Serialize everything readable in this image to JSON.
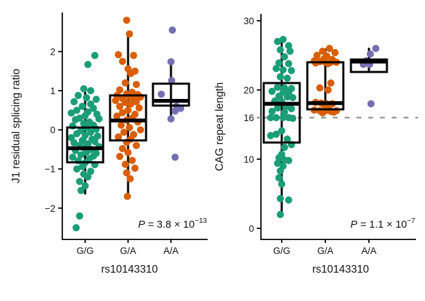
{
  "figure": {
    "background": "#ffffff",
    "stroke_color": "#000000"
  },
  "chart_data": [
    {
      "type": "boxplot-scatter",
      "title": "",
      "ylabel": "J1 residual splicing ratio",
      "xlabel": "rs10143310",
      "categories": [
        "G/G",
        "G/A",
        "A/A"
      ],
      "colors": [
        "#1b9e77",
        "#d95f02",
        "#7570b3"
      ],
      "ylim": [
        -2.8,
        3.0
      ],
      "grid": false,
      "legend": "none",
      "yticks": [
        {
          "v": -2,
          "label": "−2"
        },
        {
          "v": -1,
          "label": "−1"
        },
        {
          "v": 0,
          "label": "0"
        },
        {
          "v": 1,
          "label": "1"
        },
        {
          "v": 2,
          "label": "2"
        }
      ],
      "annotation": {
        "italic": "P",
        "rest": " = 3.8 × 10",
        "exp": "−13"
      },
      "groups": [
        {
          "category": "G/G",
          "box": {
            "lo": -1.65,
            "q1": -0.83,
            "median": -0.47,
            "q3": 0.06,
            "hi": 1.03
          },
          "points": [
            [
              14,
              1.9
            ],
            [
              4,
              1.67
            ],
            [
              -2,
              1.05
            ],
            [
              8,
              1.0
            ],
            [
              -10,
              0.88
            ],
            [
              2,
              0.82
            ],
            [
              16,
              0.78
            ],
            [
              -16,
              0.72
            ],
            [
              8,
              0.66
            ],
            [
              -4,
              0.6
            ],
            [
              12,
              0.55
            ],
            [
              -12,
              0.5
            ],
            [
              4,
              0.46
            ],
            [
              -20,
              0.43
            ],
            [
              17,
              0.4
            ],
            [
              0,
              0.36
            ],
            [
              -8,
              0.3
            ],
            [
              20,
              0.28
            ],
            [
              -14,
              0.26
            ],
            [
              6,
              0.2
            ],
            [
              -2,
              0.16
            ],
            [
              12,
              0.12
            ],
            [
              -18,
              0.1
            ],
            [
              2,
              0.06
            ],
            [
              16,
              0.02
            ],
            [
              -6,
              -0.02
            ],
            [
              8,
              -0.06
            ],
            [
              -12,
              -0.1
            ],
            [
              0,
              -0.14
            ],
            [
              18,
              -0.16
            ],
            [
              -20,
              -0.2
            ],
            [
              10,
              -0.24
            ],
            [
              -4,
              -0.27
            ],
            [
              14,
              -0.3
            ],
            [
              -16,
              -0.33
            ],
            [
              4,
              -0.36
            ],
            [
              -8,
              -0.4
            ],
            [
              20,
              -0.43
            ],
            [
              -2,
              -0.46
            ],
            [
              8,
              -0.5
            ],
            [
              -14,
              -0.53
            ],
            [
              2,
              -0.57
            ],
            [
              16,
              -0.6
            ],
            [
              -6,
              -0.64
            ],
            [
              12,
              -0.67
            ],
            [
              -18,
              -0.7
            ],
            [
              6,
              -0.74
            ],
            [
              -10,
              -0.79
            ],
            [
              0,
              -0.84
            ],
            [
              14,
              -0.89
            ],
            [
              -4,
              -0.94
            ],
            [
              -12,
              -1.0
            ],
            [
              8,
              -1.06
            ],
            [
              -2,
              -1.13
            ],
            [
              4,
              -1.2
            ],
            [
              -8,
              -1.32
            ],
            [
              0,
              -1.43
            ],
            [
              -6,
              -1.55
            ],
            [
              -8,
              -2.2
            ],
            [
              -13,
              -2.5
            ]
          ]
        },
        {
          "category": "G/A",
          "box": {
            "lo": -1.68,
            "q1": -0.27,
            "median": 0.24,
            "q3": 0.88,
            "hi": 2.42
          },
          "points": [
            [
              -2,
              2.8
            ],
            [
              2,
              2.45
            ],
            [
              -14,
              1.92
            ],
            [
              8,
              1.9
            ],
            [
              -8,
              1.75
            ],
            [
              0,
              1.56
            ],
            [
              10,
              1.5
            ],
            [
              4,
              1.44
            ],
            [
              -4,
              1.2
            ],
            [
              12,
              1.16
            ],
            [
              -12,
              1.02
            ],
            [
              6,
              0.96
            ],
            [
              -2,
              0.92
            ],
            [
              14,
              0.9
            ],
            [
              -16,
              0.88
            ],
            [
              2,
              0.85
            ],
            [
              18,
              0.84
            ],
            [
              -8,
              0.8
            ],
            [
              8,
              0.78
            ],
            [
              -18,
              0.75
            ],
            [
              12,
              0.72
            ],
            [
              -4,
              0.7
            ],
            [
              4,
              0.66
            ],
            [
              -12,
              0.6
            ],
            [
              16,
              0.56
            ],
            [
              0,
              0.5
            ],
            [
              -8,
              0.44
            ],
            [
              10,
              0.4
            ],
            [
              -16,
              0.35
            ],
            [
              6,
              0.3
            ],
            [
              -2,
              0.25
            ],
            [
              14,
              0.2
            ],
            [
              -10,
              0.12
            ],
            [
              2,
              0.06
            ],
            [
              18,
              0.0
            ],
            [
              -6,
              -0.06
            ],
            [
              8,
              -0.12
            ],
            [
              -14,
              -0.18
            ],
            [
              4,
              -0.24
            ],
            [
              -2,
              -0.32
            ],
            [
              12,
              -0.4
            ],
            [
              -8,
              -0.48
            ],
            [
              0,
              -0.58
            ],
            [
              -12,
              -0.68
            ],
            [
              6,
              -0.78
            ],
            [
              -4,
              -0.88
            ],
            [
              10,
              -0.98
            ],
            [
              -2,
              -1.1
            ],
            [
              3,
              -1.25
            ],
            [
              -1,
              -1.7
            ]
          ]
        },
        {
          "category": "A/A",
          "box": {
            "lo": 0.29,
            "q1": 0.62,
            "median": 0.74,
            "q3": 1.18,
            "hi": 1.78
          },
          "points": [
            [
              2,
              2.55
            ],
            [
              0,
              1.74
            ],
            [
              1,
              1.26
            ],
            [
              -14,
              0.91
            ],
            [
              8,
              0.6
            ],
            [
              14,
              0.55
            ],
            [
              6,
              0.48
            ],
            [
              0,
              0.28
            ],
            [
              6,
              -0.7
            ]
          ]
        }
      ]
    },
    {
      "type": "boxplot-scatter",
      "title": "",
      "ylabel": "CAG repeat length",
      "xlabel": "rs10143310",
      "categories": [
        "G/G",
        "G/A",
        "A/A"
      ],
      "colors": [
        "#1b9e77",
        "#d95f02",
        "#7570b3"
      ],
      "ylim": [
        -1.6,
        31
      ],
      "grid": false,
      "legend": "none",
      "ref_line": {
        "value": 16,
        "color": "#9a9a9a",
        "style": "dashed"
      },
      "yticks": [
        {
          "v": 0,
          "label": "0"
        },
        {
          "v": 10,
          "label": "10"
        },
        {
          "v": 16,
          "label": "16"
        },
        {
          "v": 20,
          "label": "20"
        },
        {
          "v": 30,
          "label": "30"
        }
      ],
      "annotation": {
        "italic": "P",
        "rest": " = 1.1 × 10",
        "exp": "−7"
      },
      "groups": [
        {
          "category": "G/G",
          "box": {
            "lo": 2,
            "q1": 12.4,
            "median": 18,
            "q3": 21,
            "hi": 27.2
          },
          "points": [
            [
              2,
              27.3
            ],
            [
              -6,
              27
            ],
            [
              10,
              26.4
            ],
            [
              -2,
              25.8
            ],
            [
              12,
              25.6
            ],
            [
              4,
              24.8
            ],
            [
              -4,
              23.9
            ],
            [
              10,
              23.8
            ],
            [
              -8,
              23.1
            ],
            [
              2,
              22.9
            ],
            [
              14,
              22.8
            ],
            [
              -2,
              21.9
            ],
            [
              8,
              21.7
            ],
            [
              -6,
              20.4
            ],
            [
              4,
              20.3
            ],
            [
              14,
              20.2
            ],
            [
              -14,
              19.8
            ],
            [
              2,
              19.7
            ],
            [
              10,
              19.6
            ],
            [
              -4,
              19.1
            ],
            [
              8,
              19
            ],
            [
              16,
              18.9
            ],
            [
              -10,
              18.4
            ],
            [
              0,
              18.3
            ],
            [
              6,
              17.6
            ],
            [
              -6,
              17.4
            ],
            [
              14,
              17.3
            ],
            [
              -14,
              16.9
            ],
            [
              4,
              16.8
            ],
            [
              -16,
              16
            ],
            [
              -8,
              16
            ],
            [
              2,
              16
            ],
            [
              10,
              16
            ],
            [
              16,
              15.9
            ],
            [
              0,
              14.1
            ],
            [
              -8,
              13.6
            ],
            [
              -16,
              13.4
            ],
            [
              8,
              12.9
            ],
            [
              14,
              12.1
            ],
            [
              4,
              11.7
            ],
            [
              0,
              10.7
            ],
            [
              -4,
              10.2
            ],
            [
              4,
              9.9
            ],
            [
              10,
              9.8
            ],
            [
              -6,
              9.4
            ],
            [
              2,
              9
            ],
            [
              -2,
              8.3
            ],
            [
              -4,
              7.3
            ],
            [
              0,
              6.4
            ],
            [
              -2,
              4.3
            ],
            [
              10,
              4.1
            ],
            [
              -2,
              2
            ]
          ]
        },
        {
          "category": "G/A",
          "box": {
            "lo": 17.2,
            "q1": 17.2,
            "median": 18.1,
            "q3": 24,
            "hi": 26
          },
          "points": [
            [
              6,
              26
            ],
            [
              -4,
              25.6
            ],
            [
              14,
              25.4
            ],
            [
              -12,
              25
            ],
            [
              2,
              24.9
            ],
            [
              -2,
              24.5
            ],
            [
              10,
              24.4
            ],
            [
              -16,
              24.2
            ],
            [
              -8,
              24.1
            ],
            [
              0,
              24
            ],
            [
              8,
              24
            ],
            [
              16,
              24
            ],
            [
              -14,
              23.9
            ],
            [
              4,
              23.8
            ],
            [
              8,
              21
            ],
            [
              -8,
              20.3
            ],
            [
              4,
              20
            ],
            [
              -14,
              18.2
            ],
            [
              -6,
              18.1
            ],
            [
              2,
              18
            ],
            [
              10,
              18
            ],
            [
              -2,
              17.9
            ],
            [
              6,
              17.8
            ],
            [
              -16,
              17.1
            ],
            [
              -8,
              17
            ],
            [
              0,
              17
            ],
            [
              8,
              16.9
            ],
            [
              16,
              17
            ],
            [
              12,
              16.8
            ],
            [
              -4,
              16.7
            ]
          ]
        },
        {
          "category": "A/A",
          "box": {
            "lo": 22.6,
            "q1": 22.6,
            "median": 24.1,
            "q3": 24.4,
            "hi": 26.1
          },
          "points": [
            [
              10,
              26
            ],
            [
              2,
              25.2
            ],
            [
              -4,
              24.2
            ],
            [
              -8,
              23.7
            ],
            [
              1,
              23.7
            ],
            [
              3,
              18
            ]
          ]
        }
      ]
    }
  ]
}
